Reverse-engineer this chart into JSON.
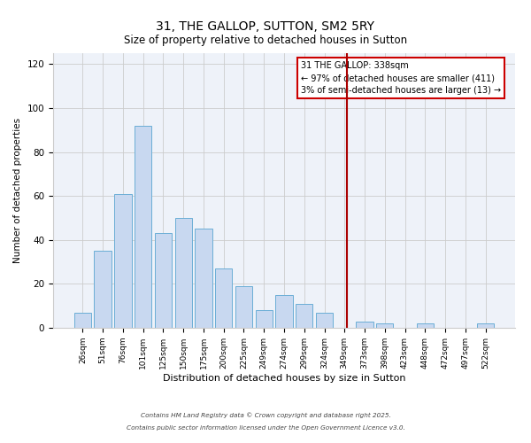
{
  "title": "31, THE GALLOP, SUTTON, SM2 5RY",
  "subtitle": "Size of property relative to detached houses in Sutton",
  "xlabel": "Distribution of detached houses by size in Sutton",
  "ylabel": "Number of detached properties",
  "bar_color": "#c8d8f0",
  "bar_edge_color": "#6baed6",
  "background_color": "#eef2f9",
  "grid_color": "#cccccc",
  "categories": [
    "26sqm",
    "51sqm",
    "76sqm",
    "101sqm",
    "125sqm",
    "150sqm",
    "175sqm",
    "200sqm",
    "225sqm",
    "249sqm",
    "274sqm",
    "299sqm",
    "324sqm",
    "349sqm",
    "373sqm",
    "398sqm",
    "423sqm",
    "448sqm",
    "472sqm",
    "497sqm",
    "522sqm"
  ],
  "values": [
    7,
    35,
    61,
    92,
    43,
    50,
    45,
    27,
    19,
    8,
    15,
    11,
    7,
    0,
    3,
    2,
    0,
    2,
    0,
    0,
    2
  ],
  "vline_x": 13.12,
  "vline_color": "#aa0000",
  "annotation_text": "31 THE GALLOP: 338sqm\n← 97% of detached houses are smaller (411)\n3% of semi-detached houses are larger (13) →",
  "ylim": [
    0,
    125
  ],
  "yticks": [
    0,
    20,
    40,
    60,
    80,
    100,
    120
  ],
  "footnote1": "Contains HM Land Registry data © Crown copyright and database right 2025.",
  "footnote2": "Contains public sector information licensed under the Open Government Licence v3.0."
}
